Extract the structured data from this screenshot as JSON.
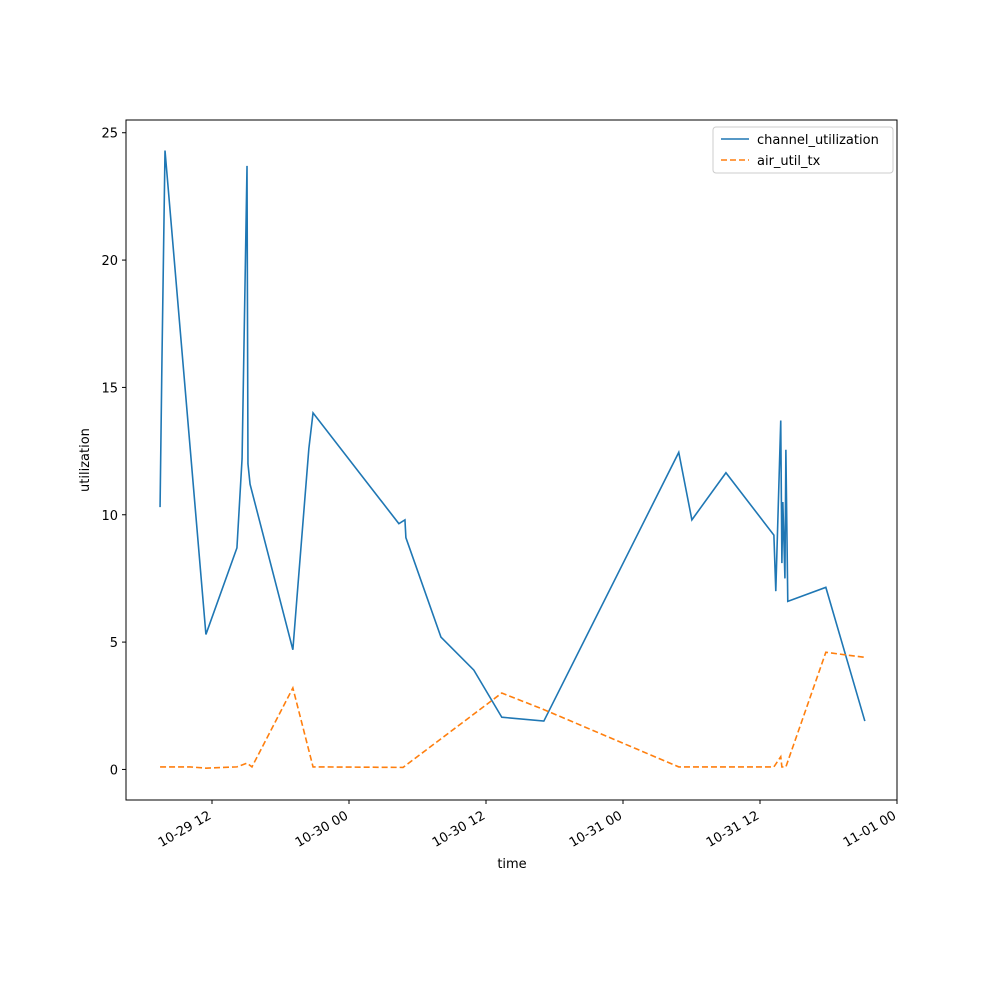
{
  "chart_data": {
    "type": "line",
    "x_label": "time",
    "y_label": "utilization",
    "xlim": [
      "10-29 04:28",
      "11-01 00:00"
    ],
    "xticks": [
      {
        "value": "10-29 12:00",
        "label": "10-29 12"
      },
      {
        "value": "10-30 00:00",
        "label": "10-30 00"
      },
      {
        "value": "10-30 12:00",
        "label": "10-30 12"
      },
      {
        "value": "10-31 00:00",
        "label": "10-31 00"
      },
      {
        "value": "10-31 12:00",
        "label": "10-31 12"
      },
      {
        "value": "11-01 00:00",
        "label": "11-01 00"
      }
    ],
    "ylim": [
      -1.2,
      25.5
    ],
    "yticks": [
      0,
      5,
      10,
      15,
      20,
      25
    ],
    "legend": "upper right",
    "series": [
      {
        "name": "channel_utilization",
        "color": "#1f77b4",
        "dash": "solid",
        "x": [
          "10-29 07:27",
          "10-29 07:37",
          "10-29 07:53",
          "10-29 11:28",
          "10-29 14:11",
          "10-29 14:38",
          "10-29 15:04",
          "10-29 15:09",
          "10-29 15:20",
          "10-29 19:05",
          "10-29 19:26",
          "10-29 20:29",
          "10-29 20:51",
          "10-30 04:22",
          "10-30 04:54",
          "10-30 04:59",
          "10-30 08:03",
          "10-30 10:56",
          "10-30 13:23",
          "10-30 17:04",
          "10-31 04:53",
          "10-31 06:02",
          "10-31 09:01",
          "10-31 13:13",
          "10-31 13:23",
          "10-31 13:49",
          "10-31 13:55",
          "10-31 14:00",
          "10-31 14:11",
          "10-31 14:16",
          "10-31 14:26",
          "10-31 17:46",
          "10-31 21:11"
        ],
        "values": [
          10.3,
          16.1,
          24.3,
          5.3,
          8.7,
          12.2,
          23.7,
          12.0,
          11.2,
          4.7,
          6.7,
          12.6,
          14.0,
          9.65,
          9.8,
          9.1,
          5.2,
          3.9,
          2.05,
          1.9,
          12.45,
          9.8,
          11.65,
          9.2,
          7.0,
          13.7,
          8.1,
          10.5,
          7.5,
          12.55,
          6.6,
          7.15,
          1.9
        ]
      },
      {
        "name": "air_util_tx",
        "color": "#ff7f0e",
        "dash": "dashed",
        "x": [
          "10-29 07:27",
          "10-29 10:04",
          "10-29 11:28",
          "10-29 14:11",
          "10-29 15:04",
          "10-29 15:30",
          "10-29 19:05",
          "10-29 20:51",
          "10-30 04:44",
          "10-30 08:03",
          "10-30 13:23",
          "10-30 17:04",
          "10-31 04:53",
          "10-31 06:02",
          "10-31 09:01",
          "10-31 13:13",
          "10-31 13:49",
          "10-31 13:55",
          "10-31 14:16",
          "10-31 17:46",
          "10-31 21:11"
        ],
        "values": [
          0.1,
          0.1,
          0.05,
          0.1,
          0.25,
          0.1,
          3.2,
          0.1,
          0.08,
          1.2,
          3.0,
          2.35,
          0.1,
          0.1,
          0.1,
          0.1,
          0.5,
          0.1,
          0.1,
          4.6,
          4.4
        ]
      }
    ]
  }
}
